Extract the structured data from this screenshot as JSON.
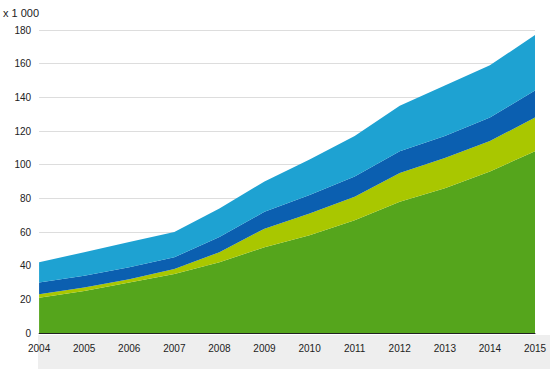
{
  "chart_data": {
    "type": "area",
    "ylabel": "x 1 000",
    "categories": [
      "2004",
      "2005",
      "2006",
      "2007",
      "2008",
      "2009",
      "2010",
      "2011",
      "2012",
      "2013",
      "2014",
      "2015"
    ],
    "series": [
      {
        "color": "#55a51c",
        "values": [
          21,
          25,
          30,
          35,
          42,
          51,
          58,
          67,
          78,
          86,
          96,
          108
        ]
      },
      {
        "color": "#a9c700",
        "values": [
          2,
          2,
          2,
          3,
          6,
          11,
          13,
          14,
          17,
          18,
          18,
          20
        ]
      },
      {
        "color": "#0b5fb0",
        "values": [
          7,
          7,
          7,
          7,
          9,
          10,
          11,
          12,
          13,
          13,
          14,
          16
        ]
      },
      {
        "color": "#1ea2d2",
        "values": [
          12,
          14,
          15,
          15,
          17,
          18,
          21,
          24,
          27,
          30,
          31,
          33
        ]
      }
    ],
    "stacked": true,
    "ylim": [
      0,
      180
    ],
    "yticks": [
      0,
      20,
      40,
      60,
      80,
      100,
      120,
      140,
      160,
      180
    ],
    "grid": true
  }
}
